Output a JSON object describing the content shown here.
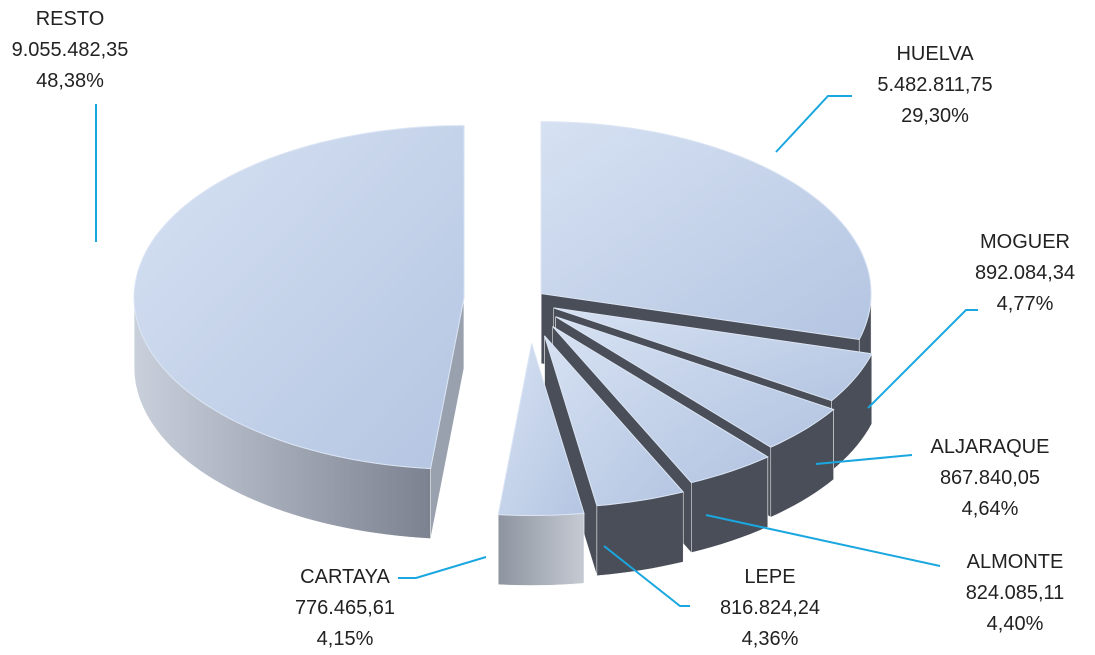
{
  "chart_data": {
    "type": "pie",
    "style": "3d-exploded",
    "slices": [
      {
        "name": "HUELVA",
        "value": 5482811.75,
        "value_label": "5.482.811,75",
        "percent_label": "29,30%"
      },
      {
        "name": "MOGUER",
        "value": 892084.34,
        "value_label": "892.084,34",
        "percent_label": "4,77%"
      },
      {
        "name": "ALJARAQUE",
        "value": 867840.05,
        "value_label": "867.840,05",
        "percent_label": "4,64%"
      },
      {
        "name": "ALMONTE",
        "value": 824085.11,
        "value_label": "824.085,11",
        "percent_label": "4,40%"
      },
      {
        "name": "LEPE",
        "value": 816824.24,
        "value_label": "816.824,24",
        "percent_label": "4,36%"
      },
      {
        "name": "CARTAYA",
        "value": 776465.61,
        "value_label": "776.465,61",
        "percent_label": "4,15%"
      },
      {
        "name": "RESTO",
        "value": 9055482.35,
        "value_label": "9.055.482,35",
        "percent_label": "48,38%"
      }
    ],
    "colors": {
      "top": "#c3d2ea",
      "top_edge": "#dbe5f4",
      "side_dark": "#4a4e58",
      "side_light": "#8a909c",
      "leader": "#1aa7e0",
      "text": "#222222"
    }
  }
}
